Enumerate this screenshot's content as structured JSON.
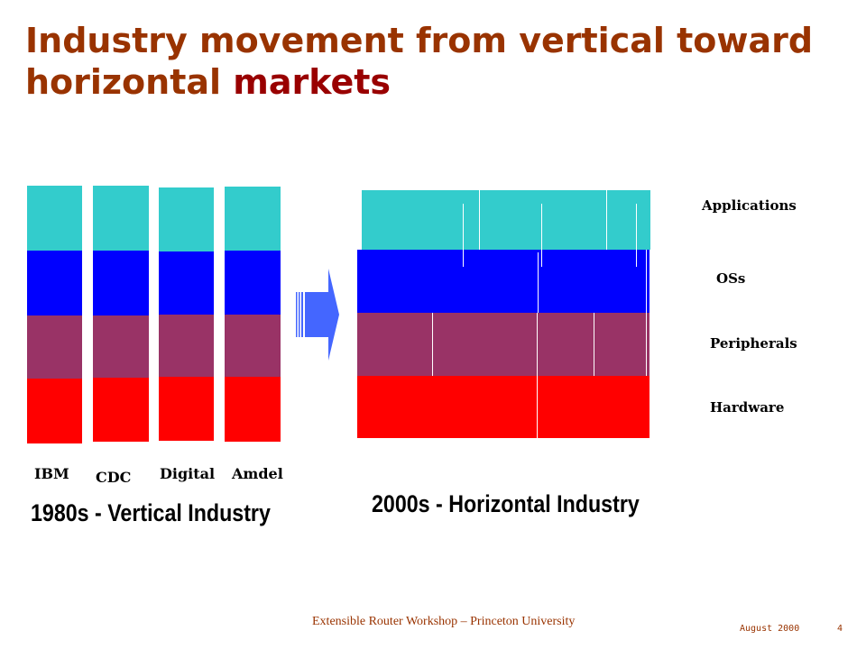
{
  "title": {
    "line1": "Industry movement from vertical toward",
    "line2_a": "horizontal ",
    "line2_b": "markets"
  },
  "vertical": {
    "companies": [
      "IBM",
      "CDC",
      "Digital",
      "Amdel"
    ],
    "caption": "1980s - Vertical Industry"
  },
  "horizontal": {
    "caption": "2000s - Horizontal Industry",
    "layers": [
      "Applications",
      "OSs",
      "Peripherals",
      "Hardware"
    ]
  },
  "colors": {
    "applications": "#33cccc",
    "os": "#0000ff",
    "peripherals": "#993366",
    "hardware": "#ff0000",
    "title": "#993300",
    "title_accent": "#990000"
  },
  "footer": {
    "text": "Extensible Router Workshop – Princeton University",
    "date": "August 2000",
    "page": "4"
  }
}
